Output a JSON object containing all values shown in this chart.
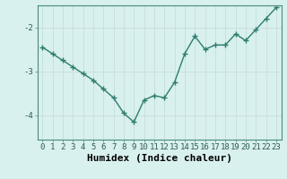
{
  "x": [
    0,
    1,
    2,
    3,
    4,
    5,
    6,
    7,
    8,
    9,
    10,
    11,
    12,
    13,
    14,
    15,
    16,
    17,
    18,
    19,
    20,
    21,
    22,
    23
  ],
  "y": [
    -2.45,
    -2.6,
    -2.75,
    -2.9,
    -3.05,
    -3.2,
    -3.4,
    -3.6,
    -3.95,
    -4.15,
    -3.65,
    -3.55,
    -3.6,
    -3.25,
    -2.6,
    -2.2,
    -2.5,
    -2.4,
    -2.4,
    -2.15,
    -2.3,
    -2.05,
    -1.8,
    -1.55
  ],
  "xlabel": "Humidex (Indice chaleur)",
  "xlim": [
    -0.5,
    23.5
  ],
  "ylim": [
    -4.55,
    -1.5
  ],
  "yticks": [
    -4,
    -3,
    -2
  ],
  "xticks": [
    0,
    1,
    2,
    3,
    4,
    5,
    6,
    7,
    8,
    9,
    10,
    11,
    12,
    13,
    14,
    15,
    16,
    17,
    18,
    19,
    20,
    21,
    22,
    23
  ],
  "line_color": "#2d7d6f",
  "bg_color": "#d8f0ee",
  "grid_color_major": "#c8dedd",
  "grid_color_minor": "#d0e8e6",
  "tick_label_fontsize": 6.5,
  "xlabel_fontsize": 8
}
